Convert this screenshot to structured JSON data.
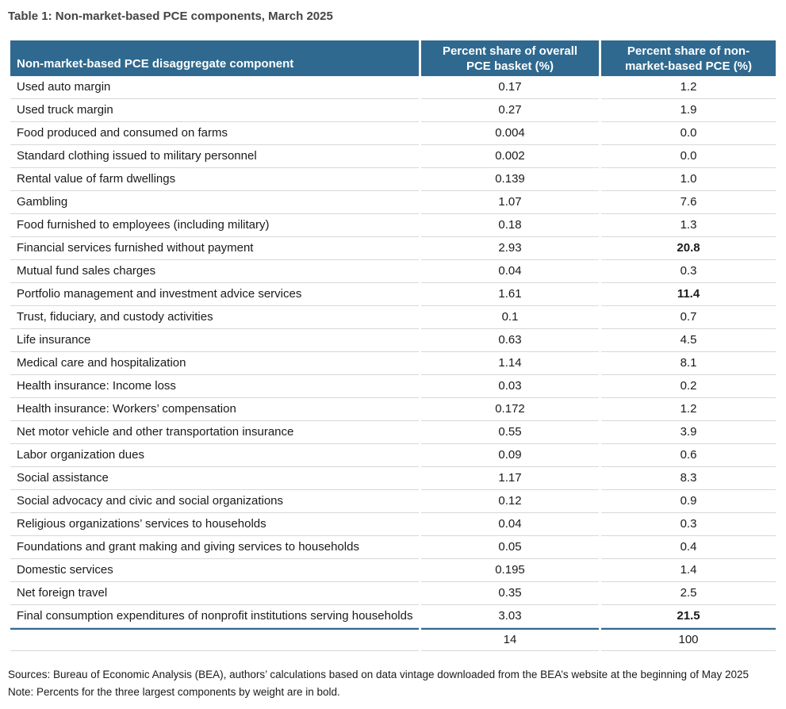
{
  "title": "Table 1: Non-market-based PCE components, March 2025",
  "colors": {
    "header_bg": "#2F698F",
    "total_rule": "#2F698F",
    "row_divider": "#D8D8D8",
    "title_text": "#444444",
    "header_text": "#FFFFFF"
  },
  "table": {
    "columns": [
      "Non-market-based PCE disaggregate component",
      "Percent share of overall PCE basket (%)",
      "Percent share of non-market-based PCE (%)"
    ],
    "rows": [
      {
        "component": "Used auto margin",
        "pce_basket_share": "0.17",
        "non_market_share": "1.2",
        "bold": false
      },
      {
        "component": "Used truck margin",
        "pce_basket_share": "0.27",
        "non_market_share": "1.9",
        "bold": false
      },
      {
        "component": "Food produced and consumed on farms",
        "pce_basket_share": "0.004",
        "non_market_share": "0.0",
        "bold": false
      },
      {
        "component": "Standard clothing issued to military personnel",
        "pce_basket_share": "0.002",
        "non_market_share": "0.0",
        "bold": false
      },
      {
        "component": "Rental value of farm dwellings",
        "pce_basket_share": "0.139",
        "non_market_share": "1.0",
        "bold": false
      },
      {
        "component": "Gambling",
        "pce_basket_share": "1.07",
        "non_market_share": "7.6",
        "bold": false
      },
      {
        "component": "Food furnished to employees (including military)",
        "pce_basket_share": "0.18",
        "non_market_share": "1.3",
        "bold": false
      },
      {
        "component": "Financial services furnished without payment",
        "pce_basket_share": "2.93",
        "non_market_share": "20.8",
        "bold": true
      },
      {
        "component": "Mutual fund sales charges",
        "pce_basket_share": "0.04",
        "non_market_share": "0.3",
        "bold": false
      },
      {
        "component": "Portfolio management and investment advice services",
        "pce_basket_share": "1.61",
        "non_market_share": "11.4",
        "bold": true
      },
      {
        "component": "Trust, fiduciary, and custody activities",
        "pce_basket_share": "0.1",
        "non_market_share": "0.7",
        "bold": false
      },
      {
        "component": "Life insurance",
        "pce_basket_share": "0.63",
        "non_market_share": "4.5",
        "bold": false
      },
      {
        "component": "Medical care and hospitalization",
        "pce_basket_share": "1.14",
        "non_market_share": "8.1",
        "bold": false
      },
      {
        "component": "Health insurance: Income loss",
        "pce_basket_share": "0.03",
        "non_market_share": "0.2",
        "bold": false
      },
      {
        "component": "Health insurance: Workers’ compensation",
        "pce_basket_share": "0.172",
        "non_market_share": "1.2",
        "bold": false
      },
      {
        "component": "Net motor vehicle and other transportation insurance",
        "pce_basket_share": "0.55",
        "non_market_share": "3.9",
        "bold": false
      },
      {
        "component": "Labor organization dues",
        "pce_basket_share": "0.09",
        "non_market_share": "0.6",
        "bold": false
      },
      {
        "component": "Social assistance",
        "pce_basket_share": "1.17",
        "non_market_share": "8.3",
        "bold": false
      },
      {
        "component": "Social advocacy and civic and social organizations",
        "pce_basket_share": "0.12",
        "non_market_share": "0.9",
        "bold": false
      },
      {
        "component": "Religious organizations’ services to households",
        "pce_basket_share": "0.04",
        "non_market_share": "0.3",
        "bold": false
      },
      {
        "component": "Foundations and grant making and giving services to households",
        "pce_basket_share": "0.05",
        "non_market_share": "0.4",
        "bold": false
      },
      {
        "component": "Domestic services",
        "pce_basket_share": "0.195",
        "non_market_share": "1.4",
        "bold": false
      },
      {
        "component": "Net foreign travel",
        "pce_basket_share": "0.35",
        "non_market_share": "2.5",
        "bold": false
      },
      {
        "component": "Final consumption expenditures of nonprofit institutions serving households",
        "pce_basket_share": "3.03",
        "non_market_share": "21.5",
        "bold": true
      }
    ],
    "total": {
      "label": "",
      "pce_basket_share": "14",
      "non_market_share": "100"
    }
  },
  "footer": {
    "sources": "Sources: Bureau of Economic Analysis (BEA), authors’ calculations based on data vintage downloaded from the BEA’s website at the beginning of May 2025",
    "note": "Note: Percents for the three largest components by weight are in bold."
  }
}
